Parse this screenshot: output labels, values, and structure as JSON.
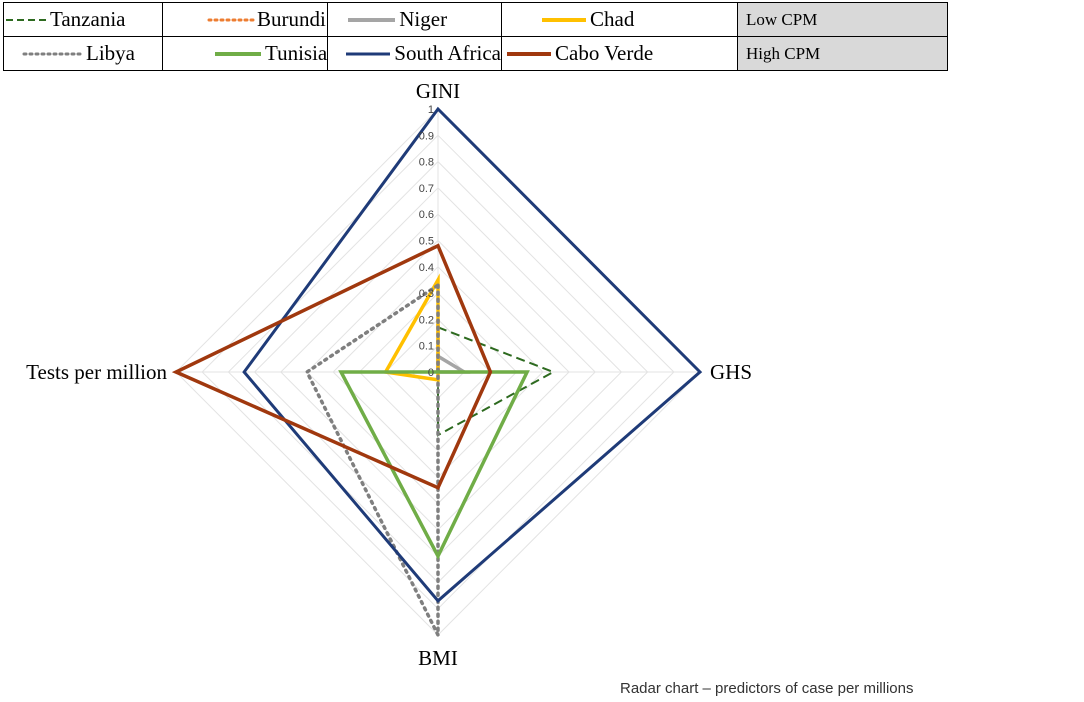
{
  "legend": {
    "groups": [
      "Low CPM",
      "High CPM"
    ]
  },
  "caption": "Radar chart – predictors of case per millions",
  "chart_data": {
    "type": "radar",
    "axes": [
      "GINI",
      "GHS",
      "BMI",
      "Tests per million"
    ],
    "rlim": [
      0,
      1
    ],
    "ticks": [
      "0",
      "0.1",
      "0.2",
      "0.3",
      "0.4",
      "0.5",
      "0.6",
      "0.7",
      "0.8",
      "0.9",
      "1"
    ],
    "grid": true,
    "series": [
      {
        "name": "Tanzania",
        "group": "Low CPM",
        "color": "#2d6a1f",
        "dash": "dashed",
        "values": [
          0.17,
          0.44,
          0.24,
          0.0
        ]
      },
      {
        "name": "Burundi",
        "group": "Low CPM",
        "color": "#ed7d31",
        "dash": "dotted",
        "values": [
          0.2,
          0.0,
          0.0,
          0.0
        ]
      },
      {
        "name": "Niger",
        "group": "Low CPM",
        "color": "#a5a5a5",
        "dash": "solid",
        "values": [
          0.06,
          0.1,
          0.0,
          0.0
        ]
      },
      {
        "name": "Chad",
        "group": "Low CPM",
        "color": "#ffc000",
        "dash": "solid",
        "values": [
          0.35,
          0.0,
          0.03,
          0.2
        ]
      },
      {
        "name": "Libya",
        "group": "High CPM",
        "color": "#7f7f7f",
        "dash": "dotted",
        "values": [
          0.33,
          0.0,
          1.0,
          0.5
        ]
      },
      {
        "name": "Tunisia",
        "group": "High CPM",
        "color": "#70ad47",
        "dash": "solid",
        "values": [
          0.0,
          0.34,
          0.7,
          0.37
        ]
      },
      {
        "name": "South Africa",
        "group": "High CPM",
        "color": "#1f3b78",
        "dash": "solid",
        "values": [
          1.0,
          1.0,
          0.87,
          0.74
        ]
      },
      {
        "name": "Cabo Verde",
        "group": "High CPM",
        "color": "#a0380e",
        "dash": "solid",
        "values": [
          0.48,
          0.2,
          0.44,
          1.0
        ]
      }
    ]
  }
}
